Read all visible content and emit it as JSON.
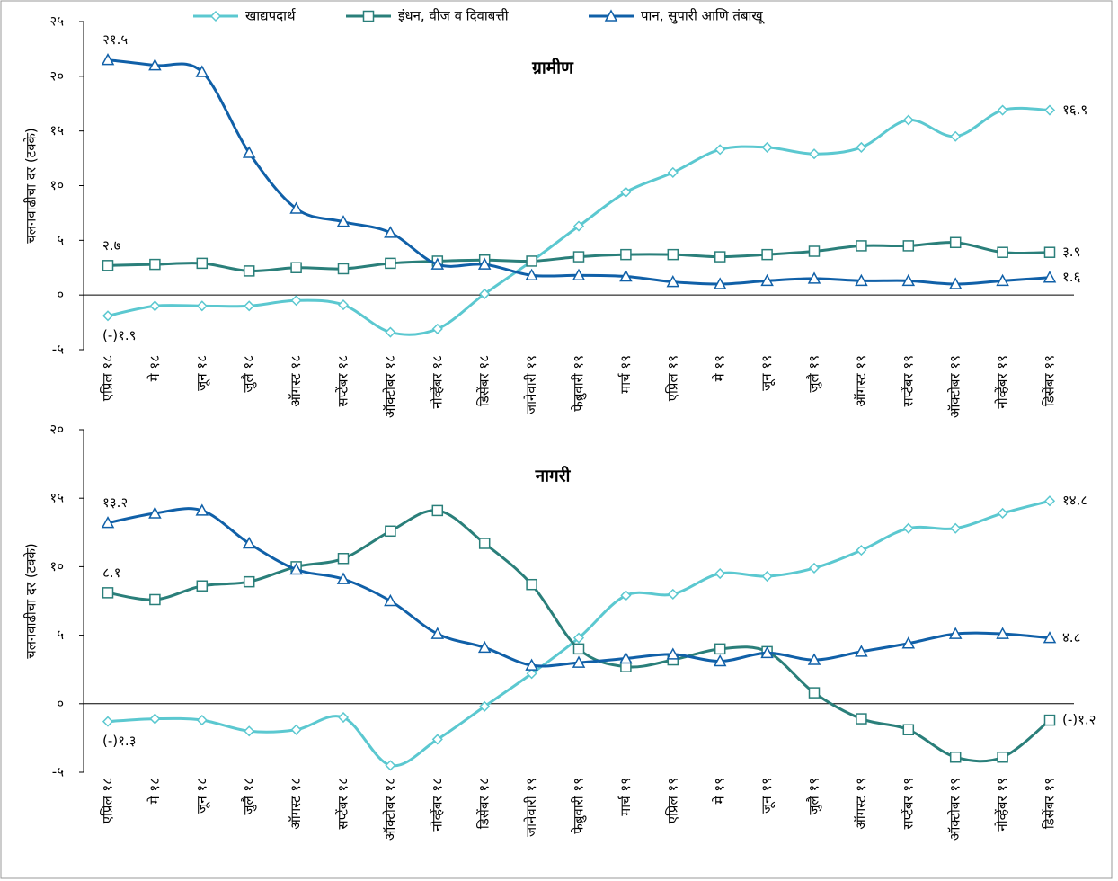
{
  "chart_data": [
    {
      "type": "line",
      "title": "ग्रामीण",
      "ylabel": "चलनवाढीचा दर (टक्के)",
      "legend": "top",
      "categories": [
        "एप्रिल १८",
        "मे १८",
        "जून १८",
        "जुलै १८",
        "ऑगस्ट १८",
        "सप्टेंबर १८",
        "ऑक्टोबर १८",
        "नोव्हेंबर १८",
        "डिसेंबर १८",
        "जानेवारी १९",
        "फेब्रुवारी १९",
        "मार्च १९",
        "एप्रिल १९",
        "मे १९",
        "जून १९",
        "जुलै १९",
        "ऑगस्ट १९",
        "सप्टेंबर १९",
        "ऑक्टोबर १९",
        "नोव्हेंबर १९",
        "डिसेंबर १९"
      ],
      "ylim": [
        -5,
        25
      ],
      "yticks": [
        {
          "value": 25,
          "label": "२५"
        },
        {
          "value": 20,
          "label": "२०"
        },
        {
          "value": 15,
          "label": "१५"
        },
        {
          "value": 10,
          "label": "१०"
        },
        {
          "value": 5,
          "label": "५"
        },
        {
          "value": 0,
          "label": "०"
        },
        {
          "value": -5,
          "label": "-५"
        }
      ],
      "series": [
        {
          "name": "खाद्यपदार्थ",
          "color": "#5bc8d0",
          "marker": "diamond",
          "values": [
            -1.9,
            -1.0,
            -1.0,
            -1.0,
            -0.5,
            -0.9,
            -3.4,
            -3.1,
            0.1,
            3.1,
            6.3,
            9.4,
            11.2,
            13.3,
            13.5,
            12.9,
            13.5,
            16.0,
            14.5,
            16.9,
            16.9
          ],
          "value_labels": [
            "(-)१.९",
            null,
            null,
            null,
            null,
            null,
            null,
            null,
            null,
            null,
            null,
            null,
            null,
            null,
            null,
            null,
            null,
            null,
            null,
            null,
            "१६.९"
          ]
        },
        {
          "name": "इंधन, वीज व दिवाबत्ती",
          "color": "#2a7f7a",
          "marker": "square",
          "values": [
            2.7,
            2.8,
            2.9,
            2.2,
            2.5,
            2.4,
            2.9,
            3.1,
            3.2,
            3.1,
            3.5,
            3.7,
            3.7,
            3.5,
            3.7,
            4.0,
            4.5,
            4.5,
            4.8,
            3.9,
            3.9
          ],
          "value_labels": [
            "२.७",
            null,
            null,
            null,
            null,
            null,
            null,
            null,
            null,
            null,
            null,
            null,
            null,
            null,
            null,
            null,
            null,
            null,
            null,
            null,
            "३.९"
          ]
        },
        {
          "name": "पान, सुपारी आणि तंबाखू",
          "color": "#1060a8",
          "marker": "triangle",
          "values": [
            21.5,
            21.0,
            20.4,
            13.0,
            7.9,
            6.7,
            5.7,
            2.8,
            2.8,
            1.8,
            1.8,
            1.7,
            1.2,
            1.0,
            1.3,
            1.5,
            1.3,
            1.3,
            1.0,
            1.3,
            1.6
          ],
          "value_labels": [
            "२१.५",
            null,
            null,
            null,
            null,
            null,
            null,
            null,
            null,
            null,
            null,
            null,
            null,
            null,
            null,
            null,
            null,
            null,
            null,
            null,
            "१.६"
          ]
        }
      ]
    },
    {
      "type": "line",
      "title": "नागरी",
      "ylabel": "चलनवाढीचा दर (टक्के)",
      "categories": [
        "एप्रिल १८",
        "मे १८",
        "जून १८",
        "जुलै १८",
        "ऑगस्ट १८",
        "सप्टेंबर १८",
        "ऑक्टोबर १८",
        "नोव्हेंबर १८",
        "डिसेंबर १८",
        "जानेवारी १९",
        "फेब्रुवारी १९",
        "मार्च १९",
        "एप्रिल १९",
        "मे १९",
        "जून १९",
        "जुलै १९",
        "ऑगस्ट १९",
        "सप्टेंबर १९",
        "ऑक्टोबर १९",
        "नोव्हेंबर १९",
        "डिसेंबर १९"
      ],
      "ylim": [
        -5,
        20
      ],
      "yticks": [
        {
          "value": 20,
          "label": "२०"
        },
        {
          "value": 15,
          "label": "१५"
        },
        {
          "value": 10,
          "label": "१०"
        },
        {
          "value": 5,
          "label": "५"
        },
        {
          "value": 0,
          "label": "०"
        },
        {
          "value": -5,
          "label": "-५"
        }
      ],
      "series": [
        {
          "color": "#5bc8d0",
          "marker": "diamond",
          "values": [
            -1.3,
            -1.1,
            -1.2,
            -2.0,
            -1.9,
            -1.0,
            -4.5,
            -2.6,
            -0.2,
            2.2,
            4.8,
            7.9,
            8.0,
            9.5,
            9.3,
            9.9,
            11.2,
            12.8,
            12.8,
            13.9,
            14.8
          ],
          "value_labels": [
            "(-)१.३",
            null,
            null,
            null,
            null,
            null,
            null,
            null,
            null,
            null,
            null,
            null,
            null,
            null,
            null,
            null,
            null,
            null,
            null,
            null,
            "१४.८"
          ]
        },
        {
          "color": "#2a7f7a",
          "marker": "square",
          "values": [
            8.1,
            7.6,
            8.6,
            8.9,
            10.0,
            10.6,
            12.6,
            14.1,
            11.7,
            8.7,
            4.0,
            2.7,
            3.2,
            4.0,
            3.8,
            0.8,
            -1.1,
            -1.9,
            -3.9,
            -3.9,
            -1.2
          ],
          "value_labels": [
            "८.१",
            null,
            null,
            null,
            null,
            null,
            null,
            null,
            null,
            null,
            null,
            null,
            null,
            null,
            null,
            null,
            null,
            null,
            null,
            null,
            "(-)१.२"
          ]
        },
        {
          "color": "#1060a8",
          "marker": "triangle",
          "values": [
            13.2,
            13.9,
            14.1,
            11.7,
            9.8,
            9.1,
            7.5,
            5.1,
            4.1,
            2.8,
            3.0,
            3.3,
            3.6,
            3.1,
            3.7,
            3.2,
            3.8,
            4.4,
            5.1,
            5.1,
            4.8
          ],
          "value_labels": [
            "१३.२",
            null,
            null,
            null,
            null,
            null,
            null,
            null,
            null,
            null,
            null,
            null,
            null,
            null,
            null,
            null,
            null,
            null,
            null,
            null,
            "४.८"
          ]
        }
      ]
    }
  ]
}
